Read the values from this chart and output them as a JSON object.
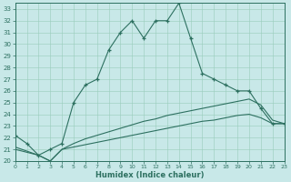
{
  "xlabel": "Humidex (Indice chaleur)",
  "bg_color": "#c8e8e8",
  "grid_color": "#99ccbb",
  "line_color": "#2d7060",
  "xlim": [
    0,
    23
  ],
  "ylim": [
    20,
    33.5
  ],
  "xticks": [
    0,
    1,
    2,
    3,
    4,
    5,
    6,
    7,
    8,
    9,
    10,
    11,
    12,
    13,
    14,
    15,
    16,
    17,
    18,
    19,
    20,
    21,
    22,
    23
  ],
  "yticks": [
    20,
    21,
    22,
    23,
    24,
    25,
    26,
    27,
    28,
    29,
    30,
    31,
    32,
    33
  ],
  "line1_x": [
    0,
    1,
    2,
    3,
    4,
    5,
    6,
    7,
    8,
    9,
    10,
    11,
    12,
    13,
    14,
    15,
    16,
    17,
    18,
    19,
    20,
    21,
    22,
    23
  ],
  "line1_y": [
    22.2,
    21.5,
    20.5,
    21.0,
    21.5,
    25.0,
    26.5,
    27.0,
    29.5,
    31.0,
    32.0,
    30.5,
    32.0,
    32.0,
    33.5,
    30.5,
    27.5,
    27.0,
    26.5,
    26.0,
    26.0,
    24.5,
    23.2,
    23.2
  ],
  "line2_x": [
    0,
    2,
    3,
    4,
    5,
    6,
    7,
    8,
    9,
    10,
    11,
    12,
    13,
    14,
    15,
    16,
    17,
    18,
    19,
    20,
    21,
    22,
    23
  ],
  "line2_y": [
    21.2,
    20.5,
    20.0,
    21.0,
    21.5,
    21.9,
    22.2,
    22.5,
    22.8,
    23.1,
    23.4,
    23.6,
    23.9,
    24.1,
    24.3,
    24.5,
    24.7,
    24.9,
    25.1,
    25.3,
    24.8,
    23.5,
    23.2
  ],
  "line3_x": [
    0,
    2,
    3,
    4,
    5,
    6,
    7,
    8,
    9,
    10,
    11,
    12,
    13,
    14,
    15,
    16,
    17,
    18,
    19,
    20,
    21,
    22,
    23
  ],
  "line3_y": [
    21.0,
    20.5,
    20.0,
    21.0,
    21.2,
    21.4,
    21.6,
    21.8,
    22.0,
    22.2,
    22.4,
    22.6,
    22.8,
    23.0,
    23.2,
    23.4,
    23.5,
    23.7,
    23.9,
    24.0,
    23.7,
    23.2,
    23.2
  ]
}
